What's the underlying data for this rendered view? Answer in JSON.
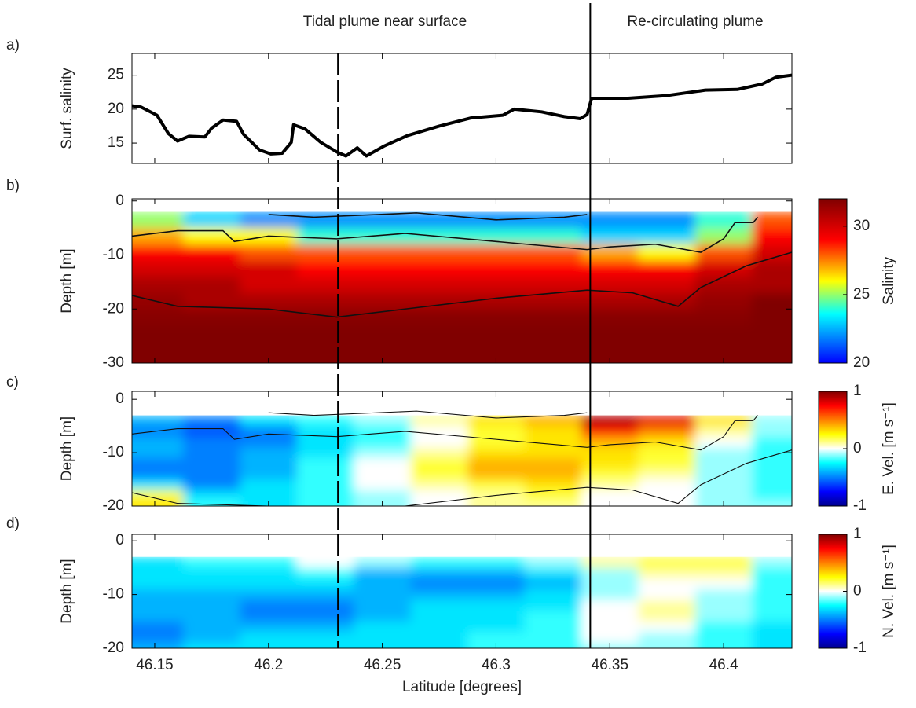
{
  "chart_data": [
    {
      "type": "line",
      "label": "a)",
      "ylabel": "Surf. salinity",
      "color": "#000000",
      "annotations": [
        "Tidal plume near surface",
        "Re-circulating plume"
      ],
      "vlines": [
        {
          "x": 46.2305,
          "style": "dashed"
        },
        {
          "x": 46.3414,
          "style": "solid"
        }
      ],
      "xlim": [
        46.14,
        46.43
      ],
      "ylim": [
        12,
        28.2
      ],
      "yticks": [
        15,
        20,
        25
      ],
      "x": [
        46.14,
        46.144,
        46.151,
        46.156,
        46.16,
        46.165,
        46.172,
        46.175,
        46.18,
        46.186,
        46.189,
        46.196,
        46.201,
        46.206,
        46.21,
        46.211,
        46.216,
        46.223,
        46.23,
        46.234,
        46.239,
        46.243,
        46.251,
        46.261,
        46.275,
        46.289,
        46.303,
        46.308,
        46.32,
        46.33,
        46.337,
        46.34,
        46.342,
        46.358,
        46.375,
        46.392,
        46.406,
        46.417,
        46.423,
        46.43
      ],
      "values": [
        20.5,
        20.3,
        19.1,
        16.4,
        15.3,
        16,
        15.9,
        17.2,
        18.4,
        18.2,
        16.3,
        14,
        13.4,
        13.5,
        15.1,
        17.7,
        17.1,
        15.1,
        13.7,
        13.1,
        14.3,
        13.1,
        14.6,
        16.1,
        17.5,
        18.7,
        19.1,
        20,
        19.6,
        18.9,
        18.6,
        19.2,
        21.6,
        21.6,
        22,
        22.8,
        22.9,
        23.7,
        24.7,
        25
      ]
    },
    {
      "type": "heatmap",
      "label": "b)",
      "ylabel": "Depth [m]",
      "colormap": "jet",
      "xlim": [
        46.14,
        46.43
      ],
      "ylim": [
        -30,
        0.4
      ],
      "yticks": [
        -30,
        -20,
        -10,
        0
      ],
      "colorbar": {
        "label": "Salinity",
        "lim": [
          20,
          32
        ],
        "ticks": [
          20,
          25,
          30
        ]
      },
      "x": [
        46.15,
        46.175,
        46.2,
        46.225,
        46.25,
        46.275,
        46.3,
        46.325,
        46.35,
        46.375,
        46.4,
        46.425
      ],
      "depth": [
        -3.5,
        -6.5,
        -9.5,
        -12.5,
        -15.5,
        -18.5,
        -21.5,
        -24.5,
        -27.5,
        -30.5
      ],
      "z": [
        [
          25,
          23,
          22,
          22,
          22,
          22,
          22,
          22,
          22,
          22,
          24,
          28
        ],
        [
          27,
          26,
          26,
          24,
          24,
          24,
          24,
          24,
          23,
          23,
          25,
          29
        ],
        [
          29,
          29,
          28,
          28,
          28,
          28,
          28,
          28,
          27,
          26,
          28,
          30
        ],
        [
          30,
          30,
          30,
          29,
          29,
          29,
          29,
          29,
          29,
          29,
          30,
          31
        ],
        [
          31,
          31,
          30,
          30,
          30,
          30,
          30,
          30,
          30,
          30,
          31,
          31
        ],
        [
          31.5,
          31,
          31,
          31,
          31,
          31,
          31,
          31,
          31,
          31,
          31.5,
          32
        ],
        [
          31.8,
          31.8,
          31.8,
          31.8,
          31.8,
          31.8,
          31.8,
          31.8,
          31.8,
          31.8,
          31.8,
          32
        ],
        [
          32,
          32,
          32,
          32,
          32,
          32,
          32,
          32,
          32,
          32,
          32,
          32
        ],
        [
          32,
          32,
          32,
          32,
          32,
          32,
          32,
          32,
          32,
          32,
          32,
          32
        ],
        [
          32,
          32,
          32,
          32,
          32,
          32,
          32,
          32,
          32,
          32,
          32,
          32
        ]
      ],
      "contours": [
        {
          "x": [
            46.2,
            46.22,
            46.265,
            46.3,
            46.33,
            46.34
          ],
          "y": [
            -2.5,
            -3,
            -2.2,
            -3.5,
            -3,
            -2.5
          ]
        },
        {
          "x": [
            46.14,
            46.16,
            46.18,
            46.185,
            46.2,
            46.23,
            46.26,
            46.3,
            46.34,
            46.35,
            46.37,
            46.39,
            46.4,
            46.405,
            46.413,
            46.415
          ],
          "y": [
            -6.5,
            -5.5,
            -5.5,
            -7.5,
            -6.5,
            -7,
            -6,
            -7.5,
            -9,
            -8.5,
            -8,
            -9.5,
            -7,
            -4,
            -4,
            -3
          ]
        },
        {
          "x": [
            46.14,
            46.16,
            46.2,
            46.23,
            46.26,
            46.3,
            46.34,
            46.36,
            46.38,
            46.39,
            46.41,
            46.43
          ],
          "y": [
            -17.5,
            -19.5,
            -20,
            -21.5,
            -20,
            -18,
            -16.5,
            -17,
            -19.5,
            -16,
            -12,
            -9.5
          ]
        }
      ]
    },
    {
      "type": "heatmap",
      "label": "c)",
      "ylabel": "Depth [m]",
      "colormap": "jet",
      "xlim": [
        46.14,
        46.43
      ],
      "ylim": [
        -20,
        1.5
      ],
      "yticks": [
        -20,
        -10,
        0
      ],
      "colorbar": {
        "label": "E. Vel. [m s⁻¹]",
        "lim": [
          -1,
          1
        ],
        "ticks": [
          -1,
          0,
          1
        ]
      },
      "x": [
        46.15,
        46.175,
        46.2,
        46.225,
        46.25,
        46.275,
        46.3,
        46.325,
        46.35,
        46.375,
        46.4,
        46.425
      ],
      "depth": [
        -4,
        -6,
        -8,
        -10,
        -12,
        -14,
        -16,
        -18,
        -20
      ],
      "z": [
        [
          -0.4,
          -0.5,
          -0.3,
          -0.2,
          -0.1,
          0.1,
          0.3,
          0.4,
          0.9,
          0.8,
          0.3,
          -0.1
        ],
        [
          -0.5,
          -0.6,
          -0.5,
          -0.3,
          -0.2,
          0,
          0.2,
          0.3,
          0.7,
          0.5,
          0.1,
          -0.1
        ],
        [
          -0.4,
          -0.5,
          -0.5,
          -0.3,
          -0.2,
          0,
          0.2,
          0.3,
          0.4,
          0.3,
          0,
          -0.2
        ],
        [
          -0.4,
          -0.5,
          -0.4,
          -0.3,
          -0.1,
          0.1,
          0.3,
          0.3,
          0.3,
          0.2,
          -0.1,
          -0.2
        ],
        [
          -0.5,
          -0.5,
          -0.4,
          -0.2,
          0,
          0.2,
          0.4,
          0.4,
          0.3,
          0.2,
          -0.1,
          -0.2
        ],
        [
          -0.5,
          -0.5,
          -0.4,
          -0.2,
          0,
          0.2,
          0.4,
          0.4,
          0.2,
          0.1,
          -0.1,
          -0.2
        ],
        [
          -0.3,
          -0.5,
          -0.3,
          -0.2,
          0,
          0.1,
          0.2,
          0.3,
          0.1,
          0,
          -0.1,
          -0.2
        ],
        [
          0.2,
          -0.3,
          -0.3,
          -0.2,
          -0.1,
          0,
          0.1,
          0.2,
          0,
          0,
          -0.1,
          -0.2
        ],
        [
          0.3,
          -0.2,
          -0.3,
          -0.2,
          -0.1,
          0,
          0.1,
          0.1,
          0,
          0,
          -0.1,
          -0.1
        ]
      ]
    },
    {
      "type": "heatmap",
      "label": "d)",
      "ylabel": "Depth [m]",
      "colormap": "jet",
      "xlabel": "Latitude [degrees]",
      "xticks": [
        46.15,
        46.2,
        46.25,
        46.3,
        46.35,
        46.4
      ],
      "xlim": [
        46.14,
        46.43
      ],
      "ylim": [
        -20,
        1.2
      ],
      "yticks": [
        -20,
        -10,
        0
      ],
      "colorbar": {
        "label": "N. Vel. [m s⁻¹]",
        "lim": [
          -1,
          1
        ],
        "ticks": [
          -1,
          0,
          1
        ]
      },
      "x": [
        46.15,
        46.175,
        46.2,
        46.225,
        46.25,
        46.275,
        46.3,
        46.325,
        46.35,
        46.375,
        46.4,
        46.425
      ],
      "depth": [
        -4,
        -6,
        -8,
        -10,
        -12,
        -14,
        -16,
        -18,
        -20
      ],
      "z": [
        [
          -0.3,
          -0.2,
          -0.2,
          0,
          -0.1,
          -0.2,
          -0.2,
          -0.1,
          0.1,
          0.2,
          0.2,
          -0.1
        ],
        [
          -0.3,
          -0.3,
          -0.3,
          -0.2,
          -0.4,
          -0.4,
          -0.4,
          -0.3,
          -0.1,
          0.1,
          0.1,
          -0.2
        ],
        [
          -0.3,
          -0.3,
          -0.3,
          -0.3,
          -0.4,
          -0.5,
          -0.5,
          -0.4,
          -0.1,
          0,
          0,
          -0.2
        ],
        [
          -0.4,
          -0.4,
          -0.4,
          -0.4,
          -0.4,
          -0.4,
          -0.4,
          -0.3,
          -0.1,
          0,
          -0.1,
          -0.2
        ],
        [
          -0.4,
          -0.4,
          -0.5,
          -0.5,
          -0.4,
          -0.3,
          -0.3,
          -0.3,
          0,
          0.1,
          -0.1,
          -0.2
        ],
        [
          -0.4,
          -0.4,
          -0.5,
          -0.5,
          -0.4,
          -0.3,
          -0.3,
          -0.2,
          0,
          0.1,
          -0.1,
          -0.2
        ],
        [
          -0.5,
          -0.4,
          -0.4,
          -0.4,
          -0.3,
          -0.3,
          -0.3,
          -0.2,
          0,
          0,
          -0.2,
          -0.3
        ],
        [
          -0.5,
          -0.4,
          -0.3,
          -0.3,
          -0.3,
          -0.3,
          -0.2,
          -0.2,
          0,
          -0.1,
          -0.2,
          -0.3
        ],
        [
          -0.4,
          -0.3,
          -0.3,
          -0.3,
          -0.3,
          -0.3,
          -0.2,
          -0.2,
          -0.1,
          -0.1,
          -0.2,
          -0.3
        ]
      ]
    }
  ]
}
